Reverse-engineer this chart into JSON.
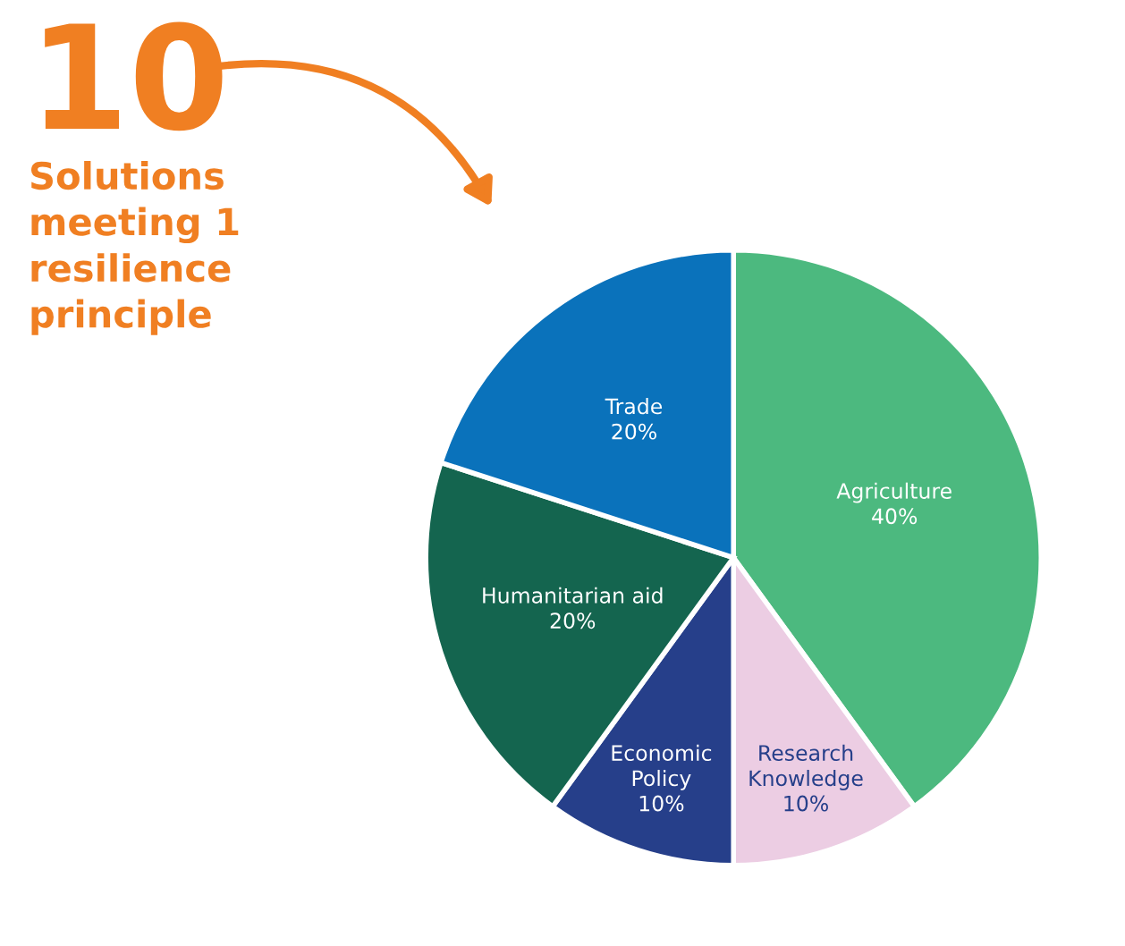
{
  "chart_data": {
    "type": "pie",
    "title": "10",
    "subtitle": "Solutions meeting 1 resilience principle",
    "categories": [
      "Agriculture",
      "Research Knowledge",
      "Economic Policy",
      "Humanitarian aid",
      "Trade"
    ],
    "values": [
      40,
      10,
      10,
      20,
      20
    ],
    "colors": [
      "#4cb97f",
      "#eccde3",
      "#263f8a",
      "#14654f",
      "#0a72bb"
    ],
    "value_labels": [
      "40%",
      "10%",
      "10%",
      "20%",
      "20%"
    ],
    "legend": false
  }
}
